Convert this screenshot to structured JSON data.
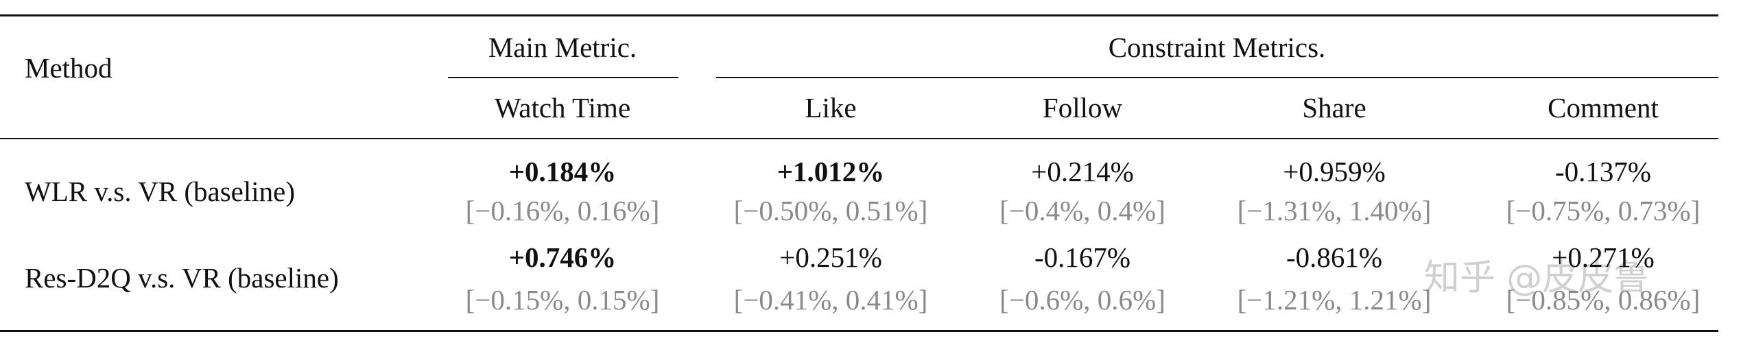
{
  "table": {
    "header": {
      "method": "Method",
      "main_group": "Main Metric.",
      "constraint_group": "Constraint Metrics.",
      "columns": [
        "Watch Time",
        "Like",
        "Follow",
        "Share",
        "Comment"
      ]
    },
    "rows": [
      {
        "method": "WLR v.s. VR (baseline)",
        "cells": [
          {
            "value": "+0.184%",
            "ci": "[−0.16%, 0.16%]",
            "bold": true
          },
          {
            "value": "+1.012%",
            "ci": "[−0.50%, 0.51%]",
            "bold": true
          },
          {
            "value": "+0.214%",
            "ci": "[−0.4%, 0.4%]",
            "bold": false
          },
          {
            "value": "+0.959%",
            "ci": "[−1.31%, 1.40%]",
            "bold": false
          },
          {
            "value": "-0.137%",
            "ci": "[−0.75%, 0.73%]",
            "bold": false
          }
        ]
      },
      {
        "method": "Res-D2Q v.s. VR (baseline)",
        "cells": [
          {
            "value": "+0.746%",
            "ci": "[−0.15%, 0.15%]",
            "bold": true
          },
          {
            "value": "+0.251%",
            "ci": "[−0.41%, 0.41%]",
            "bold": false
          },
          {
            "value": "-0.167%",
            "ci": "[−0.6%, 0.6%]",
            "bold": false
          },
          {
            "value": "-0.861%",
            "ci": "[−1.21%, 1.21%]",
            "bold": false
          },
          {
            "value": "+0.271%",
            "ci": "[−0.85%, 0.86%]",
            "bold": false
          }
        ]
      }
    ]
  },
  "watermark": "知乎 @皮皮鲁"
}
